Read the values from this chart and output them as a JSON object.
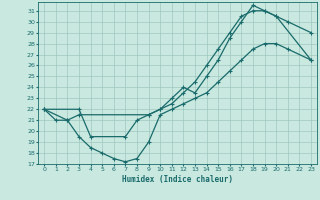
{
  "xlabel": "Humidex (Indice chaleur)",
  "bg_color": "#c8e8e0",
  "grid_color": "#a0c8c0",
  "line_color": "#1a6b6b",
  "xlim": [
    -0.5,
    23.5
  ],
  "ylim": [
    17,
    31.8
  ],
  "yticks": [
    17,
    18,
    19,
    20,
    21,
    22,
    23,
    24,
    25,
    26,
    27,
    28,
    29,
    30,
    31
  ],
  "xticks": [
    0,
    1,
    2,
    3,
    4,
    5,
    6,
    7,
    8,
    9,
    10,
    11,
    12,
    13,
    14,
    15,
    16,
    17,
    18,
    19,
    20,
    21,
    22,
    23
  ],
  "line1_x": [
    0,
    1,
    2,
    3,
    9,
    10,
    11,
    12,
    13,
    14,
    15,
    16,
    17,
    18,
    19,
    20,
    23
  ],
  "line1_y": [
    22,
    21,
    21,
    21.5,
    21.5,
    22,
    22.5,
    23.5,
    24.5,
    26,
    27.5,
    29,
    30.5,
    31,
    31,
    30.5,
    26.5
  ],
  "line2_x": [
    0,
    2,
    3,
    4,
    5,
    6,
    7,
    8,
    9,
    10,
    11,
    12,
    13,
    14,
    15,
    16,
    17,
    18,
    19,
    20,
    21,
    23
  ],
  "line2_y": [
    22,
    21,
    19.5,
    18.5,
    18,
    17.5,
    17.2,
    17.5,
    19,
    21.5,
    22,
    22.5,
    23,
    23.5,
    24.5,
    25.5,
    26.5,
    27.5,
    28,
    28,
    27.5,
    26.5
  ],
  "line3_x": [
    0,
    3,
    4,
    7,
    8,
    9,
    10,
    11,
    12,
    13,
    14,
    15,
    16,
    17,
    18,
    19,
    20,
    21,
    23
  ],
  "line3_y": [
    22,
    22,
    19.5,
    19.5,
    21,
    21.5,
    22,
    23,
    24,
    23.5,
    25,
    26.5,
    28.5,
    30,
    31.5,
    31,
    30.5,
    30,
    29
  ]
}
